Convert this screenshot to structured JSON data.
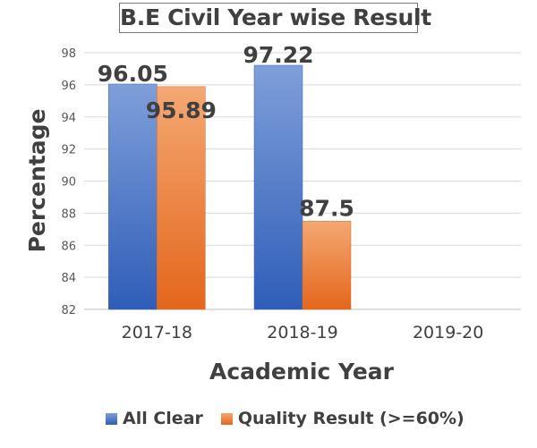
{
  "chart_data": {
    "type": "bar",
    "title": "B.E Civil Year wise Result",
    "xlabel": "Academic Year",
    "ylabel": "Percentage",
    "categories": [
      "2017-18",
      "2018-19",
      "2019-20"
    ],
    "series": [
      {
        "name": "All Clear",
        "values": [
          96.05,
          97.22,
          null
        ],
        "color": "#4472c4"
      },
      {
        "name": "Quality Result (>=60%)",
        "values": [
          95.89,
          87.5,
          null
        ],
        "color": "#ed7d31"
      }
    ],
    "data_labels": [
      [
        "96.05",
        "97.22",
        ""
      ],
      [
        "95.89",
        "87.5",
        ""
      ]
    ],
    "ylim": [
      82,
      98
    ],
    "yticks": [
      82,
      84,
      86,
      88,
      90,
      92,
      94,
      96,
      98
    ],
    "grid": true,
    "legend_position": "bottom"
  }
}
